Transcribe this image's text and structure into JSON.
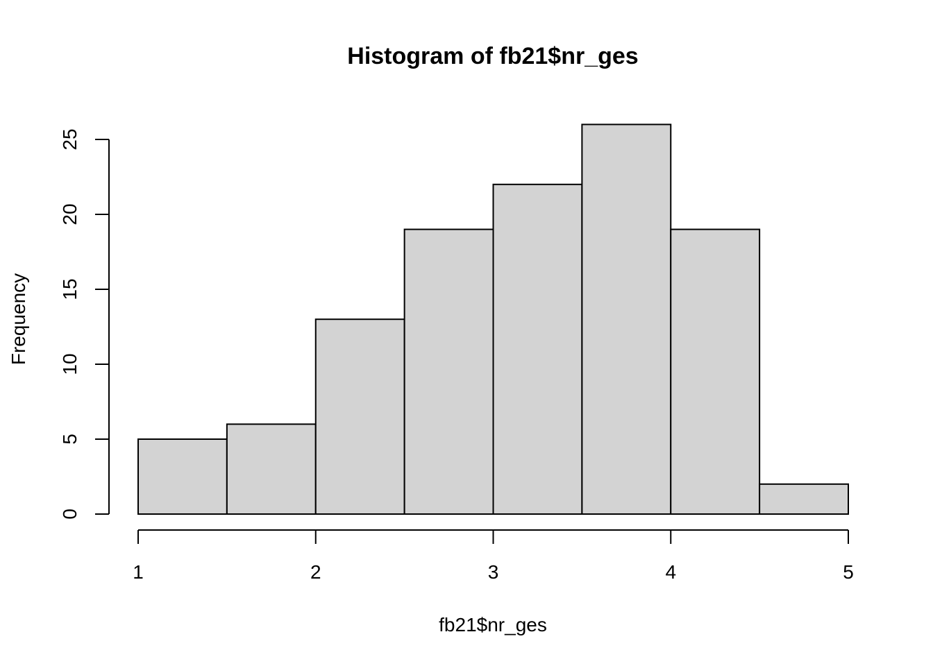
{
  "chart_data": {
    "type": "bar",
    "title": "Histogram of fb21$nr_ges",
    "xlabel": "fb21$nr_ges",
    "ylabel": "Frequency",
    "bins": [
      {
        "x0": 1.0,
        "x1": 1.5,
        "count": 5
      },
      {
        "x0": 1.5,
        "x1": 2.0,
        "count": 6
      },
      {
        "x0": 2.0,
        "x1": 2.5,
        "count": 13
      },
      {
        "x0": 2.5,
        "x1": 3.0,
        "count": 19
      },
      {
        "x0": 3.0,
        "x1": 3.5,
        "count": 22
      },
      {
        "x0": 3.5,
        "x1": 4.0,
        "count": 26
      },
      {
        "x0": 4.0,
        "x1": 4.5,
        "count": 19
      },
      {
        "x0": 4.5,
        "x1": 5.0,
        "count": 2
      }
    ],
    "xlim": [
      1,
      5
    ],
    "ylim": [
      0,
      26
    ],
    "x_ticks": [
      1,
      2,
      3,
      4,
      5
    ],
    "y_ticks": [
      0,
      5,
      10,
      15,
      20,
      25
    ],
    "grid": false,
    "bar_color": "#d3d3d3",
    "edge_color": "#000000"
  }
}
